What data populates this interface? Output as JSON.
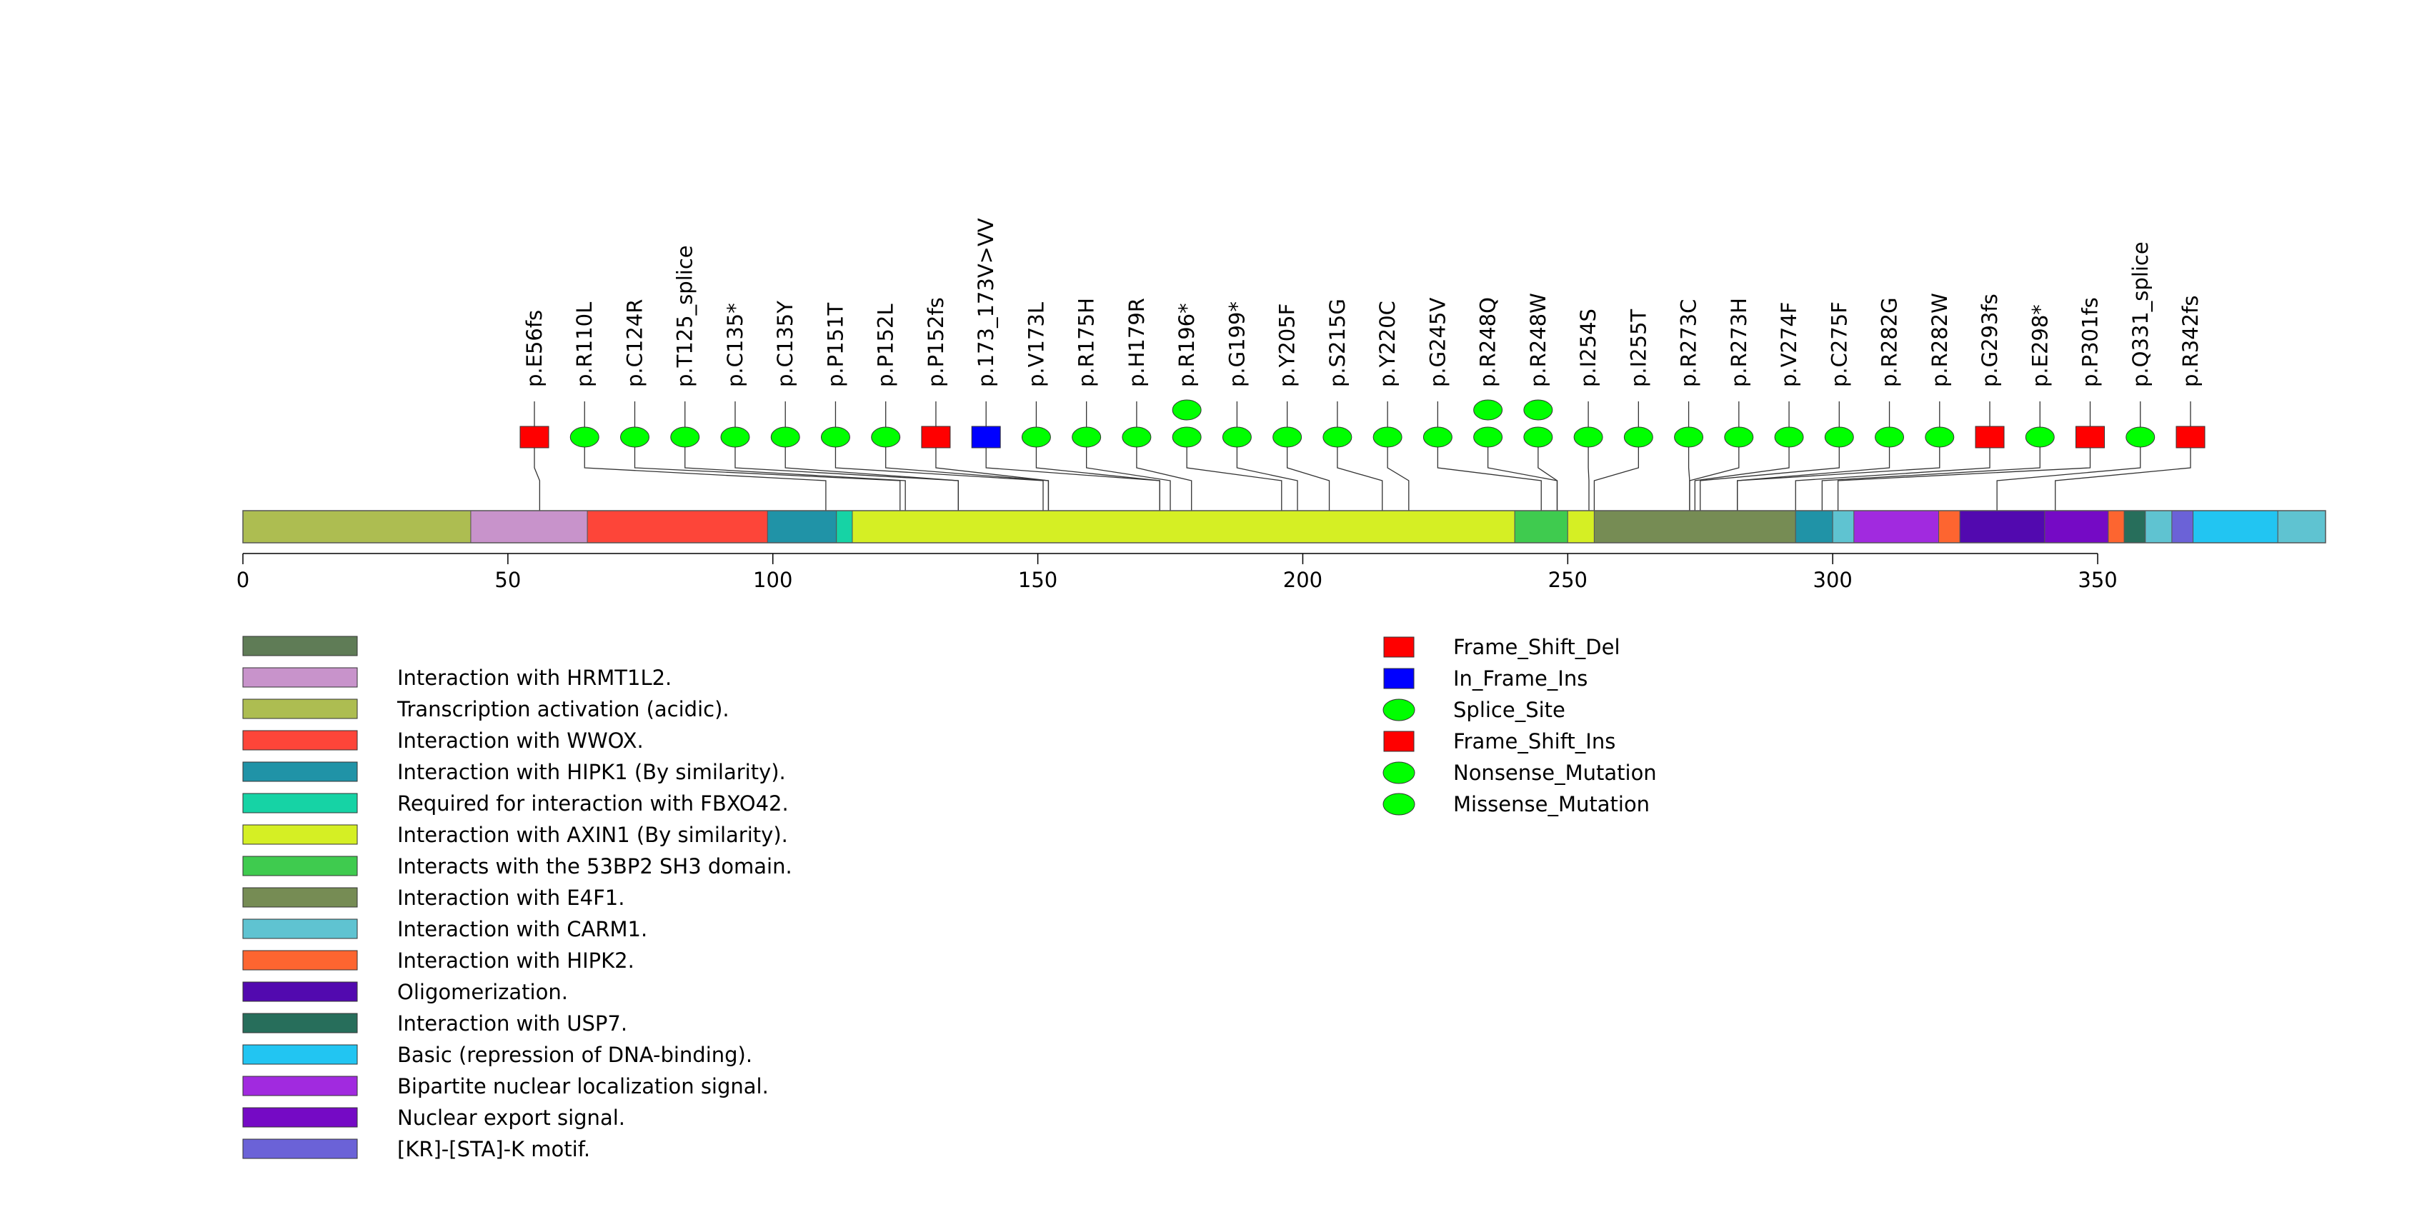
{
  "chart_data": {
    "type": "lollipop",
    "title": "",
    "xlabel": "",
    "ylabel": "",
    "xlim": [
      0,
      393
    ],
    "x_ticks": [
      0,
      50,
      100,
      150,
      200,
      250,
      300,
      350
    ],
    "domains": [
      {
        "name": "Transcription activation (acidic).",
        "start": 0,
        "end": 43,
        "color": "#adbd51"
      },
      {
        "name": "Interaction with HRMT1L2.",
        "start": 43,
        "end": 65,
        "color": "#c893cb"
      },
      {
        "name": "Interaction with WWOX.",
        "start": 65,
        "end": 99,
        "color": "#fd4539"
      },
      {
        "name": "Interaction with HIPK1 (By similarity).",
        "start": 99,
        "end": 112,
        "color": "#2093a7"
      },
      {
        "name": "Required for interaction with FBXO42.",
        "start": 112,
        "end": 115,
        "color": "#16d3a5"
      },
      {
        "name": "Interaction with AXIN1 (By similarity).",
        "start": 115,
        "end": 240,
        "color": "#d5ef24"
      },
      {
        "name": "Interacts with the 53BP2 SH3 domain.",
        "start": 240,
        "end": 250,
        "color": "#3fcb4f"
      },
      {
        "name": "Interaction with AXIN1 (By similarity).",
        "start": 250,
        "end": 255,
        "color": "#d5ef24"
      },
      {
        "name": "Interaction with E4F1.",
        "start": 255,
        "end": 293,
        "color": "#768c54"
      },
      {
        "name": "Interaction with HIPK1 (By similarity).",
        "start": 293,
        "end": 300,
        "color": "#2093a7"
      },
      {
        "name": "Interaction with CARM1.",
        "start": 300,
        "end": 304,
        "color": "#5fc3d1"
      },
      {
        "name": "Bipartite nuclear localization signal.",
        "start": 304,
        "end": 320,
        "color": "#a12adf"
      },
      {
        "name": "Interaction with HIPK2.",
        "start": 320,
        "end": 324,
        "color": "#fd6530"
      },
      {
        "name": "Oligomerization.",
        "start": 324,
        "end": 340,
        "color": "#5209af"
      },
      {
        "name": "Nuclear export sig.",
        "start": 340,
        "end": 352,
        "color": "#750ac5"
      },
      {
        "name": "Interaction with HIPK2.",
        "start": 352,
        "end": 355,
        "color": "#fd6530"
      },
      {
        "name": "Interaction with USP7.",
        "start": 355,
        "end": 359,
        "color": "#276e5b"
      },
      {
        "name": "Interaction with CARM1.",
        "start": 359,
        "end": 364,
        "color": "#5fc3d1"
      },
      {
        "name": "[KR]-[STA]-K motif.",
        "start": 364,
        "end": 368,
        "color": "#6b62d7"
      },
      {
        "name": "Basic (repression of DNA-binding).",
        "start": 368,
        "end": 384,
        "color": "#22c5f2"
      },
      {
        "name": "Interaction with CARM1.",
        "start": 384,
        "end": 393,
        "color": "#5fc3d1"
      }
    ],
    "mutations": [
      {
        "label": "p.E56fs",
        "pos": 56,
        "type": "Frame_Shift_Del",
        "count": 1
      },
      {
        "label": "p.R110L",
        "pos": 110,
        "type": "Missense_Mutation",
        "count": 1
      },
      {
        "label": "p.C124R",
        "pos": 124,
        "type": "Missense_Mutation",
        "count": 1
      },
      {
        "label": "p.T125_splice",
        "pos": 125,
        "type": "Splice_Site",
        "count": 1
      },
      {
        "label": "p.C135*",
        "pos": 135,
        "type": "Nonsense_Mutation",
        "count": 1
      },
      {
        "label": "p.C135Y",
        "pos": 135,
        "type": "Missense_Mutation",
        "count": 1
      },
      {
        "label": "p.P151T",
        "pos": 151,
        "type": "Missense_Mutation",
        "count": 1
      },
      {
        "label": "p.P152L",
        "pos": 152,
        "type": "Missense_Mutation",
        "count": 1
      },
      {
        "label": "p.P152fs",
        "pos": 152,
        "type": "Frame_Shift_Ins",
        "count": 1
      },
      {
        "label": "p.173_173V>VV",
        "pos": 173,
        "type": "In_Frame_Ins",
        "count": 1
      },
      {
        "label": "p.V173L",
        "pos": 173,
        "type": "Missense_Mutation",
        "count": 1
      },
      {
        "label": "p.R175H",
        "pos": 175,
        "type": "Missense_Mutation",
        "count": 1
      },
      {
        "label": "p.H179R",
        "pos": 179,
        "type": "Missense_Mutation",
        "count": 1
      },
      {
        "label": "p.R196*",
        "pos": 196,
        "type": "Nonsense_Mutation",
        "count": 2
      },
      {
        "label": "p.G199*",
        "pos": 199,
        "type": "Nonsense_Mutation",
        "count": 1
      },
      {
        "label": "p.Y205F",
        "pos": 205,
        "type": "Missense_Mutation",
        "count": 1
      },
      {
        "label": "p.S215G",
        "pos": 215,
        "type": "Missense_Mutation",
        "count": 1
      },
      {
        "label": "p.Y220C",
        "pos": 220,
        "type": "Missense_Mutation",
        "count": 1
      },
      {
        "label": "p.G245V",
        "pos": 245,
        "type": "Missense_Mutation",
        "count": 1
      },
      {
        "label": "p.R248Q",
        "pos": 248,
        "type": "Missense_Mutation",
        "count": 2
      },
      {
        "label": "p.R248W",
        "pos": 248,
        "type": "Missense_Mutation",
        "count": 2
      },
      {
        "label": "p.I254S",
        "pos": 254,
        "type": "Missense_Mutation",
        "count": 1
      },
      {
        "label": "p.I255T",
        "pos": 255,
        "type": "Missense_Mutation",
        "count": 1
      },
      {
        "label": "p.R273C",
        "pos": 273,
        "type": "Missense_Mutation",
        "count": 1
      },
      {
        "label": "p.R273H",
        "pos": 273,
        "type": "Missense_Mutation",
        "count": 1
      },
      {
        "label": "p.V274F",
        "pos": 274,
        "type": "Missense_Mutation",
        "count": 1
      },
      {
        "label": "p.C275F",
        "pos": 275,
        "type": "Missense_Mutation",
        "count": 1
      },
      {
        "label": "p.R282G",
        "pos": 282,
        "type": "Missense_Mutation",
        "count": 1
      },
      {
        "label": "p.R282W",
        "pos": 282,
        "type": "Missense_Mutation",
        "count": 1
      },
      {
        "label": "p.G293fs",
        "pos": 293,
        "type": "Frame_Shift_Del",
        "count": 1
      },
      {
        "label": "p.E298*",
        "pos": 298,
        "type": "Nonsense_Mutation",
        "count": 1
      },
      {
        "label": "p.P301fs",
        "pos": 301,
        "type": "Frame_Shift_Del",
        "count": 1
      },
      {
        "label": "p.Q331_splice",
        "pos": 331,
        "type": "Splice_Site",
        "count": 1
      },
      {
        "label": "p.R342fs",
        "pos": 342,
        "type": "Frame_Shift_Del",
        "count": 1
      }
    ],
    "domain_legend": [
      {
        "label": "",
        "color": "#5f7c56"
      },
      {
        "label": "Interaction with HRMT1L2.",
        "color": "#c893cb"
      },
      {
        "label": "Transcription activation (acidic).",
        "color": "#adbd51"
      },
      {
        "label": "Interaction with WWOX.",
        "color": "#fd4539"
      },
      {
        "label": "Interaction with HIPK1 (By similarity).",
        "color": "#2093a7"
      },
      {
        "label": "Required for interaction with FBXO42.",
        "color": "#16d3a5"
      },
      {
        "label": "Interaction with AXIN1 (By similarity).",
        "color": "#d5ef24"
      },
      {
        "label": "Interacts with the 53BP2 SH3 domain.",
        "color": "#3fcb4f"
      },
      {
        "label": "Interaction with E4F1.",
        "color": "#768c54"
      },
      {
        "label": "Interaction with CARM1.",
        "color": "#5fc3d1"
      },
      {
        "label": "Interaction with HIPK2.",
        "color": "#fd6530"
      },
      {
        "label": "Oligomerization.",
        "color": "#5209af"
      },
      {
        "label": "Interaction with USP7.",
        "color": "#276e5b"
      },
      {
        "label": "Basic (repression of DNA-binding).",
        "color": "#22c5f2"
      },
      {
        "label": "Bipartite nuclear localization signal.",
        "color": "#a12adf"
      },
      {
        "label": "Nuclear export signal.",
        "color": "#750ac5"
      },
      {
        "label": "[KR]-[STA]-K motif.",
        "color": "#6b62d7"
      }
    ],
    "mutation_legend": [
      {
        "label": "Frame_Shift_Del",
        "shape": "rect",
        "color": "#ff0000"
      },
      {
        "label": "In_Frame_Ins",
        "shape": "rect",
        "color": "#0000ff"
      },
      {
        "label": "Splice_Site",
        "shape": "ellipse",
        "color": "#00ff00"
      },
      {
        "label": "Frame_Shift_Ins",
        "shape": "rect",
        "color": "#ff0000"
      },
      {
        "label": "Nonsense_Mutation",
        "shape": "ellipse",
        "color": "#00ff00"
      },
      {
        "label": "Missense_Mutation",
        "shape": "ellipse",
        "color": "#00ff00"
      }
    ]
  }
}
